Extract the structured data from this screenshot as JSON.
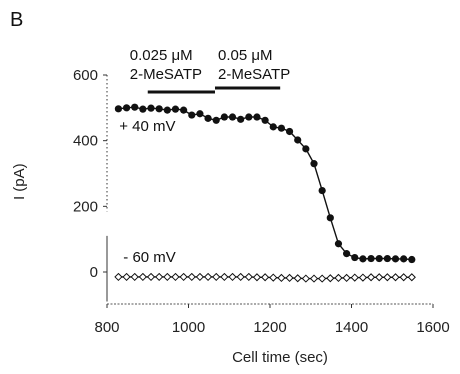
{
  "chart_data": {
    "type": "scatter",
    "panel_label": "B",
    "xlabel": "Cell time (sec)",
    "ylabel": "I (pA)",
    "xlim": [
      800,
      1600
    ],
    "ylim": [
      -50,
      600
    ],
    "x_ticks": [
      800,
      1000,
      1200,
      1400,
      1600
    ],
    "y_ticks": [
      0,
      200,
      400,
      600
    ],
    "grid": false,
    "series": [
      {
        "name": "+ 40 mV",
        "marker": "filled-circle",
        "color": "#111111",
        "x": [
          828,
          848,
          868,
          888,
          908,
          928,
          948,
          968,
          988,
          1008,
          1028,
          1048,
          1068,
          1088,
          1108,
          1128,
          1148,
          1168,
          1188,
          1208,
          1228,
          1248,
          1268,
          1288,
          1308,
          1328,
          1348,
          1368,
          1388,
          1408,
          1428,
          1448,
          1468,
          1488,
          1508,
          1528,
          1548
        ],
        "y": [
          497,
          500,
          502,
          496,
          499,
          497,
          493,
          496,
          493,
          478,
          482,
          468,
          462,
          472,
          472,
          465,
          472,
          472,
          462,
          442,
          438,
          428,
          402,
          375,
          330,
          248,
          165,
          86,
          56,
          44,
          40,
          41,
          41,
          41,
          40,
          40,
          38
        ]
      },
      {
        "name": "- 60 mV",
        "marker": "open-diamond",
        "color": "#111111",
        "x": [
          828,
          848,
          868,
          888,
          908,
          928,
          948,
          968,
          988,
          1008,
          1028,
          1048,
          1068,
          1088,
          1108,
          1128,
          1148,
          1168,
          1188,
          1208,
          1228,
          1248,
          1268,
          1288,
          1308,
          1328,
          1348,
          1368,
          1388,
          1408,
          1428,
          1448,
          1468,
          1488,
          1508,
          1528,
          1548
        ],
        "y": [
          -15,
          -15,
          -15,
          -15,
          -15,
          -15,
          -15,
          -15,
          -15,
          -15,
          -15,
          -15,
          -15,
          -15,
          -15,
          -15,
          -15,
          -16,
          -16,
          -17,
          -18,
          -18,
          -19,
          -20,
          -20,
          -20,
          -19,
          -18,
          -18,
          -17,
          -17,
          -16,
          -16,
          -16,
          -16,
          -16,
          -16
        ]
      }
    ],
    "applications": [
      {
        "label_line1": "0.025 μM",
        "label_line2": "2-MeSATP",
        "x_start": 900,
        "x_end": 1065
      },
      {
        "label_line1": "0.05 μM",
        "label_line2": "2-MeSATP",
        "x_start": 1065,
        "x_end": 1225
      }
    ],
    "annotations": [
      {
        "text": "+ 40 mV",
        "x": 830,
        "y": 430
      },
      {
        "text": "- 60 mV",
        "x": 840,
        "y": 30
      }
    ]
  }
}
